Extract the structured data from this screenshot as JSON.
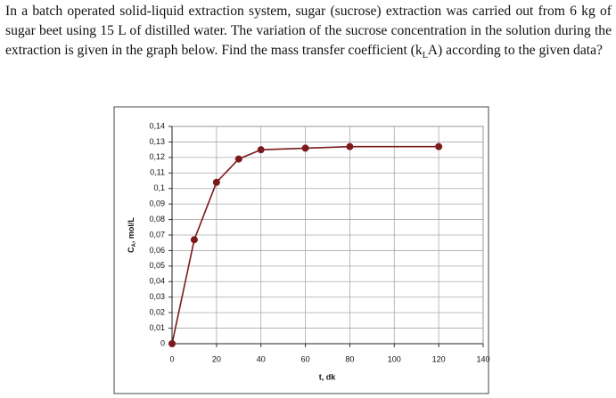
{
  "problem": {
    "text_start": "In a batch operated solid-liquid extraction system, sugar (sucrose) extraction was carried out from 6 kg of sugar beet using 15 L of distilled water. The variation of the sucrose concentration in the solution during the extraction is given in the graph below. Find the mass transfer coefficient (k",
    "text_sub": "L",
    "text_end": "A) according to the given data?"
  },
  "chart_data": {
    "type": "line",
    "x_label": "t, dk",
    "y_label": {
      "main": "C",
      "sub": "A",
      "rest": ", mol/L"
    },
    "x": [
      0,
      10,
      20,
      30,
      40,
      60,
      80,
      120
    ],
    "values": [
      0,
      0.067,
      0.104,
      0.119,
      0.125,
      0.126,
      0.127,
      0.127
    ],
    "color": "#7b1a1a",
    "xlim": [
      0,
      140
    ],
    "xticks": [
      0,
      20,
      40,
      60,
      80,
      100,
      120,
      140
    ],
    "ylim": [
      0,
      0.14
    ],
    "yticks": [
      0,
      {
        "value": 0.01,
        "label": "0,01"
      },
      {
        "value": 0.02,
        "label": "0,02"
      },
      {
        "value": 0.03,
        "label": "0,03"
      },
      {
        "value": 0.04,
        "label": "0,04"
      },
      {
        "value": 0.05,
        "label": "0,05"
      },
      {
        "value": 0.06,
        "label": "0,06"
      },
      {
        "value": 0.07,
        "label": "0,07"
      },
      {
        "value": 0.08,
        "label": "0,08"
      },
      {
        "value": 0.09,
        "label": "0,09"
      },
      {
        "value": 0.1,
        "label": "0,1"
      },
      {
        "value": 0.11,
        "label": "0,11"
      },
      {
        "value": 0.12,
        "label": "0,12"
      },
      {
        "value": 0.13,
        "label": "0,13"
      },
      {
        "value": 0.14,
        "label": "0,14"
      }
    ],
    "grid": true
  }
}
